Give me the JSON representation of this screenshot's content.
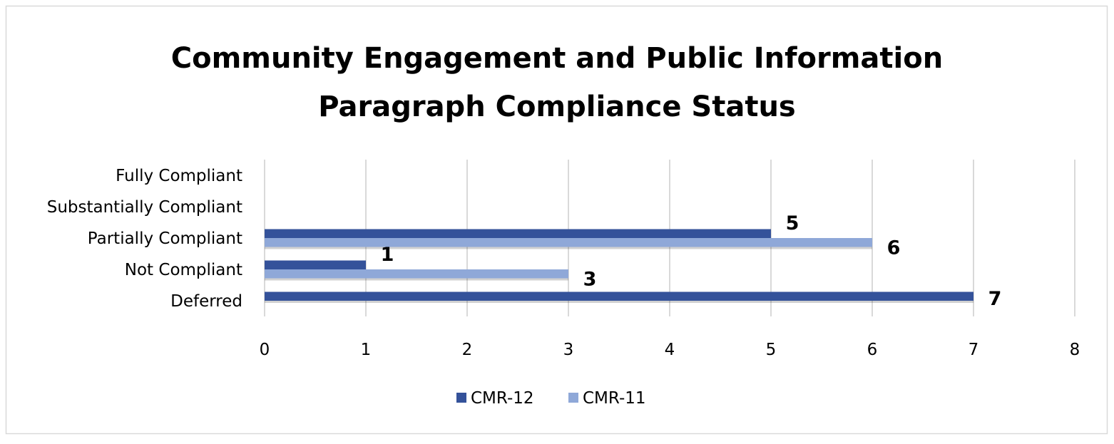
{
  "chart_data": {
    "type": "bar",
    "orientation": "horizontal",
    "title": "Community Engagement and Public Information Paragraph Compliance Status",
    "title_lines": [
      "Community Engagement and Public Information",
      "Paragraph Compliance Status"
    ],
    "categories": [
      "Fully Compliant",
      "Substantially Compliant",
      "Partially Compliant",
      "Not Compliant",
      "Deferred"
    ],
    "series": [
      {
        "name": "CMR-12",
        "color": "#34529A",
        "values": [
          0,
          0,
          5,
          1,
          7
        ]
      },
      {
        "name": "CMR-11",
        "color": "#8FA8D8",
        "values": [
          0,
          0,
          6,
          3,
          0
        ]
      }
    ],
    "xlim": [
      0,
      8
    ],
    "xticks": [
      "0",
      "1",
      "2",
      "3",
      "4",
      "5",
      "6",
      "7",
      "8"
    ],
    "xlabel": "",
    "ylabel": "",
    "grid": "vertical",
    "legend": "bottom"
  }
}
